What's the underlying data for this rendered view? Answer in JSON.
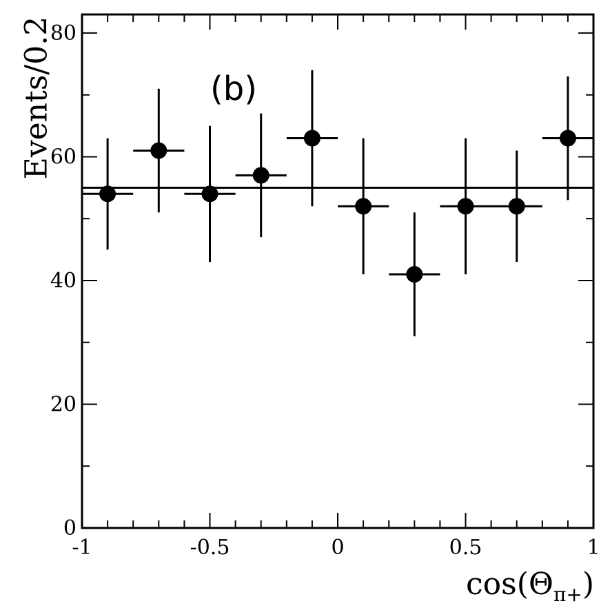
{
  "chart_data": {
    "type": "scatter",
    "annotation": "(b)",
    "ylabel": "Events/0.2",
    "xlabel": {
      "main": "cos(Θ",
      "sub": "π+",
      "close": ")"
    },
    "xlim": [
      -1,
      1
    ],
    "ylim": [
      0,
      83
    ],
    "xticks": [
      {
        "value": -1,
        "label": "-1"
      },
      {
        "value": -0.5,
        "label": "-0.5"
      },
      {
        "value": 0,
        "label": "0"
      },
      {
        "value": 0.5,
        "label": "0.5"
      },
      {
        "value": 1,
        "label": "1"
      }
    ],
    "xminor_step": 0.1,
    "yticks": [
      {
        "value": 0,
        "label": "0"
      },
      {
        "value": 20,
        "label": "20"
      },
      {
        "value": 40,
        "label": "40"
      },
      {
        "value": 60,
        "label": "60"
      },
      {
        "value": 80,
        "label": "80"
      }
    ],
    "yminor_step": 10,
    "bin_half_width": 0.1,
    "points": [
      {
        "x": -0.9,
        "y": 54,
        "err_low": 9,
        "err_high": 9
      },
      {
        "x": -0.7,
        "y": 61,
        "err_low": 10,
        "err_high": 10
      },
      {
        "x": -0.5,
        "y": 54,
        "err_low": 11,
        "err_high": 11
      },
      {
        "x": -0.3,
        "y": 57,
        "err_low": 10,
        "err_high": 10
      },
      {
        "x": -0.1,
        "y": 63,
        "err_low": 11,
        "err_high": 11
      },
      {
        "x": 0.1,
        "y": 52,
        "err_low": 11,
        "err_high": 11
      },
      {
        "x": 0.3,
        "y": 41,
        "err_low": 10,
        "err_high": 10
      },
      {
        "x": 0.5,
        "y": 52,
        "err_low": 11,
        "err_high": 11
      },
      {
        "x": 0.7,
        "y": 52,
        "err_low": 9,
        "err_high": 9
      },
      {
        "x": 0.9,
        "y": 63,
        "err_low": 10,
        "err_high": 10
      }
    ],
    "fit_line": {
      "type": "constant",
      "y": 55
    },
    "grid": false,
    "legend": "none"
  }
}
